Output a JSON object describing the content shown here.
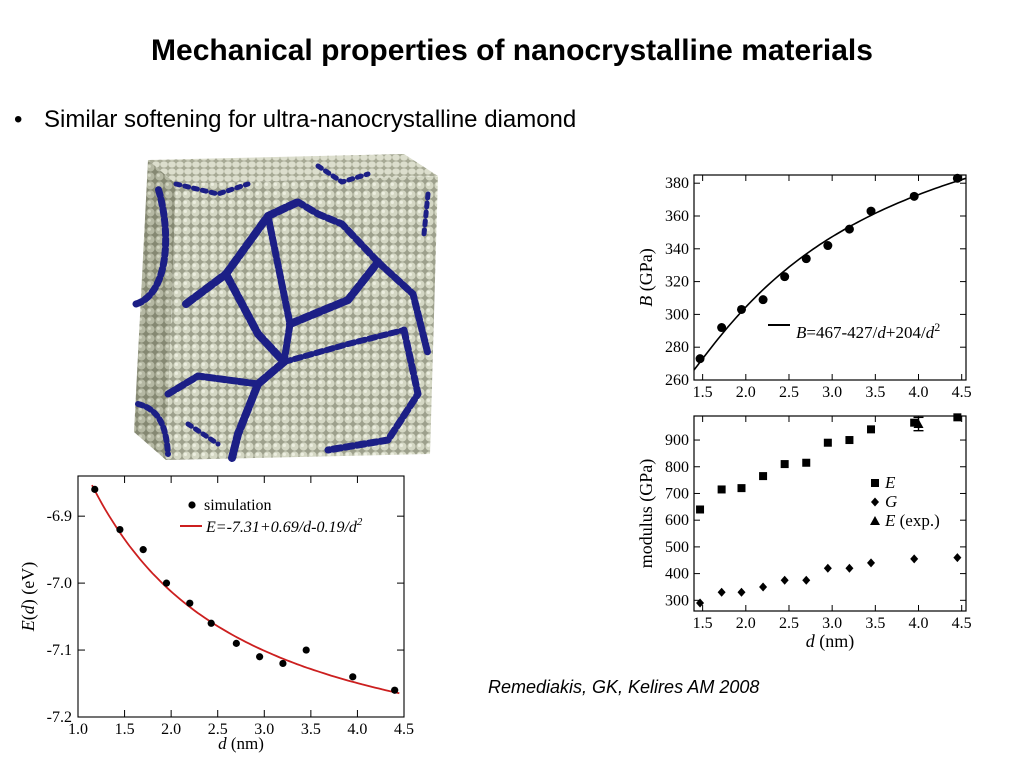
{
  "slide": {
    "title": "Mechanical properties of nanocrystalline materials",
    "bullet": "Similar softening for ultra-nanocrystalline diamond",
    "bullet_symbol": "•",
    "citation": "Remediakis, GK, Kelires AM 2008"
  },
  "simulation_image": {
    "description_icon": "atomistic-cube-render",
    "colors": {
      "bulk": "#c8cbb8",
      "boundary": "#1c1f86"
    }
  },
  "chart_data": [
    {
      "id": "bulk-modulus",
      "type": "scatter",
      "title": "",
      "xlabel": "",
      "ylabel_italic": "B",
      "ylabel_rest": " (GPa)",
      "xlim": [
        1.4,
        4.55
      ],
      "ylim": [
        260,
        385
      ],
      "xticks": [
        "1.5",
        "2.0",
        "2.5",
        "3.0",
        "3.5",
        "4.0",
        "4.5"
      ],
      "yticks": [
        "260",
        "280",
        "300",
        "320",
        "340",
        "360",
        "380"
      ],
      "points": [
        {
          "x": 1.47,
          "y": 273
        },
        {
          "x": 1.72,
          "y": 292
        },
        {
          "x": 1.95,
          "y": 303
        },
        {
          "x": 2.2,
          "y": 309
        },
        {
          "x": 2.45,
          "y": 323
        },
        {
          "x": 2.7,
          "y": 334
        },
        {
          "x": 2.95,
          "y": 342
        },
        {
          "x": 3.2,
          "y": 352
        },
        {
          "x": 3.45,
          "y": 363
        },
        {
          "x": 3.95,
          "y": 372
        },
        {
          "x": 4.45,
          "y": 383
        }
      ],
      "fit": {
        "c0": 467,
        "c1": -427,
        "c2": 204
      },
      "legend": {
        "label_prefix_italic": "B",
        "label_mid": "=467-427/",
        "label_d1": "d",
        "label_plus": "+204/",
        "label_d2": "d",
        "label_sup": "2"
      }
    },
    {
      "id": "modulus",
      "type": "scatter",
      "xlabel_italic": "d",
      "xlabel_rest": " (nm)",
      "ylabel": "modulus (GPa)",
      "xlim": [
        1.4,
        4.55
      ],
      "ylim": [
        260,
        990
      ],
      "xticks": [
        "1.5",
        "2.0",
        "2.5",
        "3.0",
        "3.5",
        "4.0",
        "4.5"
      ],
      "yticks": [
        "300",
        "400",
        "500",
        "600",
        "700",
        "800",
        "900"
      ],
      "series": [
        {
          "name": "E",
          "marker": "square",
          "points": [
            {
              "x": 1.47,
              "y": 640
            },
            {
              "x": 1.72,
              "y": 715
            },
            {
              "x": 1.95,
              "y": 720
            },
            {
              "x": 2.2,
              "y": 765
            },
            {
              "x": 2.45,
              "y": 810
            },
            {
              "x": 2.7,
              "y": 815
            },
            {
              "x": 2.95,
              "y": 890
            },
            {
              "x": 3.2,
              "y": 900
            },
            {
              "x": 3.45,
              "y": 940
            },
            {
              "x": 3.95,
              "y": 965
            },
            {
              "x": 4.45,
              "y": 985
            }
          ]
        },
        {
          "name": "G",
          "marker": "diamond",
          "points": [
            {
              "x": 1.47,
              "y": 290
            },
            {
              "x": 1.72,
              "y": 330
            },
            {
              "x": 1.95,
              "y": 330
            },
            {
              "x": 2.2,
              "y": 350
            },
            {
              "x": 2.45,
              "y": 375
            },
            {
              "x": 2.7,
              "y": 375
            },
            {
              "x": 2.95,
              "y": 420
            },
            {
              "x": 3.2,
              "y": 420
            },
            {
              "x": 3.45,
              "y": 440
            },
            {
              "x": 3.95,
              "y": 455
            },
            {
              "x": 4.45,
              "y": 460
            }
          ]
        },
        {
          "name": "E",
          "name_suffix": " (exp.)",
          "marker": "triangle",
          "points": [
            {
              "x": 4.0,
              "y": 960,
              "err": 25
            }
          ]
        }
      ]
    },
    {
      "id": "energy",
      "type": "scatter",
      "xlabel_italic": "d",
      "xlabel_rest": " (nm)",
      "ylabel_italic": "E",
      "ylabel_mid": "(",
      "ylabel_d": "d",
      "ylabel_rest": ") (eV)",
      "xlim": [
        1.0,
        4.5
      ],
      "ylim": [
        -7.2,
        -6.84
      ],
      "xticks": [
        "1.0",
        "1.5",
        "2.0",
        "2.5",
        "3.0",
        "3.5",
        "4.0",
        "4.5"
      ],
      "yticks": [
        "-6.9",
        "-7.0",
        "-7.1",
        "-7.2"
      ],
      "ytick_values": [
        -6.9,
        -7.0,
        -7.1,
        -7.2
      ],
      "points": [
        {
          "x": 1.18,
          "y": -6.86
        },
        {
          "x": 1.45,
          "y": -6.92
        },
        {
          "x": 1.7,
          "y": -6.95
        },
        {
          "x": 1.95,
          "y": -7.0
        },
        {
          "x": 2.2,
          "y": -7.03
        },
        {
          "x": 2.43,
          "y": -7.06
        },
        {
          "x": 2.7,
          "y": -7.09
        },
        {
          "x": 2.95,
          "y": -7.11
        },
        {
          "x": 3.2,
          "y": -7.12
        },
        {
          "x": 3.45,
          "y": -7.1
        },
        {
          "x": 3.95,
          "y": -7.14
        },
        {
          "x": 4.4,
          "y": -7.16
        }
      ],
      "fit": {
        "c0": -7.31,
        "c1": 0.69,
        "c2": -0.19
      },
      "fit_color": "#cc1f1f",
      "legend": {
        "sim_label": "simulation",
        "fit_italic": "E",
        "fit_rest": "=-7.31+0.69/d-0.19/d",
        "fit_sup": "2"
      }
    }
  ]
}
